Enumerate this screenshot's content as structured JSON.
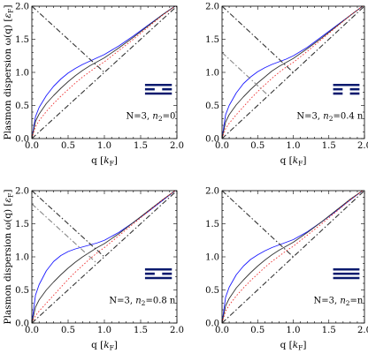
{
  "chart_data": [
    {
      "type": "line",
      "xlabel": "q [k_F]",
      "ylabel": "Plasmon dispersion ω(q) [ε_F]",
      "annotation": "N=3, n2=0",
      "xlim": [
        0,
        2
      ],
      "ylim": [
        0,
        2
      ],
      "xticks": [
        "0.0",
        "0.5",
        "1.0",
        "1.5",
        "2.0"
      ],
      "yticks": [
        "0.0",
        "0.5",
        "1.0",
        "1.5",
        "2.0"
      ],
      "legend": "middle-right",
      "layer_glyph": "solid-dashed-solid",
      "colors": {
        "blue": "#1a1aff",
        "black": "#333333",
        "red": "#ee3333",
        "grey": "#888888",
        "glyph": "#0a1a6e"
      },
      "series": [
        {
          "color": "blue",
          "style": "solid",
          "x": [
            0,
            0.05,
            0.1,
            0.2,
            0.3,
            0.4,
            0.5,
            0.6,
            0.7,
            0.8,
            0.9,
            1.0,
            1.2,
            1.4,
            1.6,
            1.8,
            2.0
          ],
          "y": [
            0,
            0.33,
            0.47,
            0.65,
            0.79,
            0.9,
            0.99,
            1.06,
            1.12,
            1.17,
            1.22,
            1.27,
            1.4,
            1.55,
            1.71,
            1.87,
            2.02
          ]
        },
        {
          "color": "black",
          "style": "solid",
          "x": [
            0,
            0.05,
            0.1,
            0.2,
            0.3,
            0.4,
            0.5,
            0.6,
            0.7,
            0.8,
            0.9,
            1.0,
            1.2,
            1.4,
            1.6,
            1.8,
            2.0
          ],
          "y": [
            0,
            0.26,
            0.37,
            0.53,
            0.65,
            0.76,
            0.86,
            0.95,
            1.03,
            1.1,
            1.16,
            1.22,
            1.37,
            1.53,
            1.7,
            1.87,
            2.02
          ]
        },
        {
          "color": "red",
          "style": "dotted",
          "x": [
            0,
            0.05,
            0.1,
            0.2,
            0.3,
            0.4,
            0.5,
            0.6,
            0.7,
            0.8,
            0.9,
            1.0,
            1.2,
            1.4,
            1.6,
            1.8,
            2.0
          ],
          "y": [
            0,
            0.18,
            0.27,
            0.41,
            0.53,
            0.64,
            0.74,
            0.84,
            0.93,
            1.01,
            1.09,
            1.16,
            1.33,
            1.5,
            1.68,
            1.86,
            2.02
          ]
        },
        {
          "color": "black",
          "style": "dashdot",
          "x": [
            0,
            2
          ],
          "y": [
            0,
            2
          ]
        },
        {
          "color": "black",
          "style": "dashdot",
          "x": [
            0,
            1.0
          ],
          "y": [
            2,
            1.0
          ]
        }
      ]
    },
    {
      "type": "line",
      "xlabel": "q [k_F]",
      "ylabel": "",
      "annotation": "N=3, n2=0.4 n",
      "xlim": [
        0,
        2
      ],
      "ylim": [
        0,
        2
      ],
      "xticks": [
        "0.0",
        "0.5",
        "1.0",
        "1.5",
        "2.0"
      ],
      "yticks": [
        "0.0",
        "0.5",
        "1.0",
        "1.5",
        "2.0"
      ],
      "legend": "middle-right",
      "layer_glyph": "solid-dashed-dashed",
      "colors": {
        "blue": "#1a1aff",
        "black": "#333333",
        "red": "#ee3333",
        "grey": "#888888",
        "glyph": "#0a1a6e"
      },
      "series": [
        {
          "color": "blue",
          "style": "solid",
          "x": [
            0,
            0.05,
            0.1,
            0.2,
            0.3,
            0.4,
            0.5,
            0.6,
            0.7,
            0.8,
            0.9,
            1.0,
            1.2,
            1.4,
            1.6,
            1.8,
            2.0
          ],
          "y": [
            0,
            0.36,
            0.5,
            0.69,
            0.83,
            0.93,
            1.01,
            1.07,
            1.12,
            1.16,
            1.2,
            1.25,
            1.38,
            1.54,
            1.7,
            1.86,
            2.02
          ]
        },
        {
          "color": "black",
          "style": "solid",
          "x": [
            0,
            0.05,
            0.1,
            0.2,
            0.3,
            0.4,
            0.5,
            0.6,
            0.7,
            0.8,
            0.9,
            1.0,
            1.2,
            1.4,
            1.6,
            1.8,
            2.0
          ],
          "y": [
            0,
            0.25,
            0.36,
            0.51,
            0.63,
            0.74,
            0.84,
            0.93,
            1.02,
            1.09,
            1.15,
            1.21,
            1.36,
            1.52,
            1.69,
            1.86,
            2.02
          ]
        },
        {
          "color": "red",
          "style": "dotted",
          "x": [
            0,
            0.05,
            0.1,
            0.2,
            0.3,
            0.4,
            0.5,
            0.6,
            0.7,
            0.8,
            0.9,
            1.0,
            1.2,
            1.4,
            1.6,
            1.8,
            2.0
          ],
          "y": [
            0,
            0.15,
            0.23,
            0.36,
            0.48,
            0.6,
            0.71,
            0.81,
            0.91,
            1.0,
            1.08,
            1.15,
            1.32,
            1.5,
            1.68,
            1.86,
            2.02
          ]
        },
        {
          "color": "black",
          "style": "dashdot",
          "x": [
            0,
            2
          ],
          "y": [
            0,
            2
          ]
        },
        {
          "color": "black",
          "style": "dashdot",
          "x": [
            0,
            1.0
          ],
          "y": [
            2,
            1.0
          ]
        },
        {
          "color": "grey",
          "style": "dashdot",
          "x": [
            0,
            0.65
          ],
          "y": [
            1.3,
            0.65
          ]
        }
      ]
    },
    {
      "type": "line",
      "xlabel": "q [k_F]",
      "ylabel": "Plasmon dispersion ω(q) [ε_F]",
      "annotation": "N=3, n2=0.8 n",
      "xlim": [
        0,
        2
      ],
      "ylim": [
        0,
        2
      ],
      "xticks": [
        "0.0",
        "0.5",
        "1.0",
        "1.5",
        "2.0"
      ],
      "yticks": [
        "0.0",
        "0.5",
        "1.0",
        "1.5",
        "2.0"
      ],
      "legend": "middle-right",
      "layer_glyph": "solid-dashed-solid",
      "colors": {
        "blue": "#1a1aff",
        "black": "#333333",
        "red": "#ee3333",
        "grey": "#888888",
        "glyph": "#0a1a6e"
      },
      "series": [
        {
          "color": "blue",
          "style": "solid",
          "x": [
            0,
            0.05,
            0.1,
            0.2,
            0.3,
            0.4,
            0.5,
            0.6,
            0.7,
            0.8,
            0.9,
            1.0,
            1.2,
            1.4,
            1.6,
            1.8,
            2.0
          ],
          "y": [
            0,
            0.42,
            0.58,
            0.79,
            0.93,
            1.02,
            1.08,
            1.12,
            1.15,
            1.18,
            1.21,
            1.25,
            1.37,
            1.52,
            1.68,
            1.85,
            2.02
          ]
        },
        {
          "color": "black",
          "style": "solid",
          "x": [
            0,
            0.05,
            0.1,
            0.2,
            0.3,
            0.4,
            0.5,
            0.6,
            0.7,
            0.8,
            0.9,
            1.0,
            1.2,
            1.4,
            1.6,
            1.8,
            2.0
          ],
          "y": [
            0,
            0.24,
            0.35,
            0.5,
            0.62,
            0.73,
            0.83,
            0.92,
            1.0,
            1.07,
            1.14,
            1.2,
            1.35,
            1.52,
            1.69,
            1.86,
            2.02
          ]
        },
        {
          "color": "red",
          "style": "dotted",
          "x": [
            0,
            0.05,
            0.1,
            0.2,
            0.3,
            0.4,
            0.5,
            0.6,
            0.7,
            0.8,
            0.9,
            1.0,
            1.2,
            1.4,
            1.6,
            1.8,
            2.0
          ],
          "y": [
            0,
            0.11,
            0.18,
            0.3,
            0.42,
            0.54,
            0.66,
            0.77,
            0.87,
            0.97,
            1.06,
            1.14,
            1.32,
            1.5,
            1.68,
            1.86,
            2.02
          ]
        },
        {
          "color": "black",
          "style": "dashdot",
          "x": [
            0,
            2
          ],
          "y": [
            0,
            2
          ]
        },
        {
          "color": "black",
          "style": "dashdot",
          "x": [
            0,
            1.0
          ],
          "y": [
            2,
            1.0
          ]
        },
        {
          "color": "grey",
          "style": "dashdot",
          "x": [
            0,
            0.9
          ],
          "y": [
            1.8,
            0.9
          ]
        }
      ]
    },
    {
      "type": "line",
      "xlabel": "q [k_F]",
      "ylabel": "",
      "annotation": "N=3, n2=n",
      "xlim": [
        0,
        2
      ],
      "ylim": [
        0,
        2
      ],
      "xticks": [
        "0.0",
        "0.5",
        "1.0",
        "1.5",
        "2.0"
      ],
      "yticks": [
        "0.0",
        "0.5",
        "1.0",
        "1.5",
        "2.0"
      ],
      "legend": "middle-right",
      "layer_glyph": "solid-solid-solid",
      "colors": {
        "blue": "#1a1aff",
        "black": "#333333",
        "red": "#ee3333",
        "grey": "#888888",
        "glyph": "#0a1a6e"
      },
      "series": [
        {
          "color": "blue",
          "style": "solid",
          "x": [
            0,
            0.05,
            0.1,
            0.2,
            0.3,
            0.4,
            0.5,
            0.6,
            0.7,
            0.8,
            0.9,
            1.0,
            1.2,
            1.4,
            1.6,
            1.8,
            2.0
          ],
          "y": [
            0,
            0.39,
            0.54,
            0.73,
            0.86,
            0.96,
            1.03,
            1.09,
            1.14,
            1.18,
            1.22,
            1.26,
            1.38,
            1.53,
            1.69,
            1.86,
            2.02
          ]
        },
        {
          "color": "black",
          "style": "solid",
          "x": [
            0,
            0.05,
            0.1,
            0.2,
            0.3,
            0.4,
            0.5,
            0.6,
            0.7,
            0.8,
            0.9,
            1.0,
            1.2,
            1.4,
            1.6,
            1.8,
            2.0
          ],
          "y": [
            0,
            0.26,
            0.37,
            0.53,
            0.65,
            0.76,
            0.86,
            0.95,
            1.03,
            1.1,
            1.16,
            1.22,
            1.37,
            1.53,
            1.7,
            1.87,
            2.02
          ]
        },
        {
          "color": "red",
          "style": "dotted",
          "x": [
            0,
            0.05,
            0.1,
            0.2,
            0.3,
            0.4,
            0.5,
            0.6,
            0.7,
            0.8,
            0.9,
            1.0,
            1.2,
            1.4,
            1.6,
            1.8,
            2.0
          ],
          "y": [
            0,
            0.18,
            0.27,
            0.41,
            0.53,
            0.64,
            0.74,
            0.84,
            0.93,
            1.01,
            1.09,
            1.16,
            1.33,
            1.5,
            1.68,
            1.86,
            2.02
          ]
        },
        {
          "color": "black",
          "style": "dashdot",
          "x": [
            0,
            2
          ],
          "y": [
            0,
            2
          ]
        },
        {
          "color": "black",
          "style": "dashdot",
          "x": [
            0,
            1.0
          ],
          "y": [
            2,
            1.0
          ]
        }
      ]
    }
  ]
}
